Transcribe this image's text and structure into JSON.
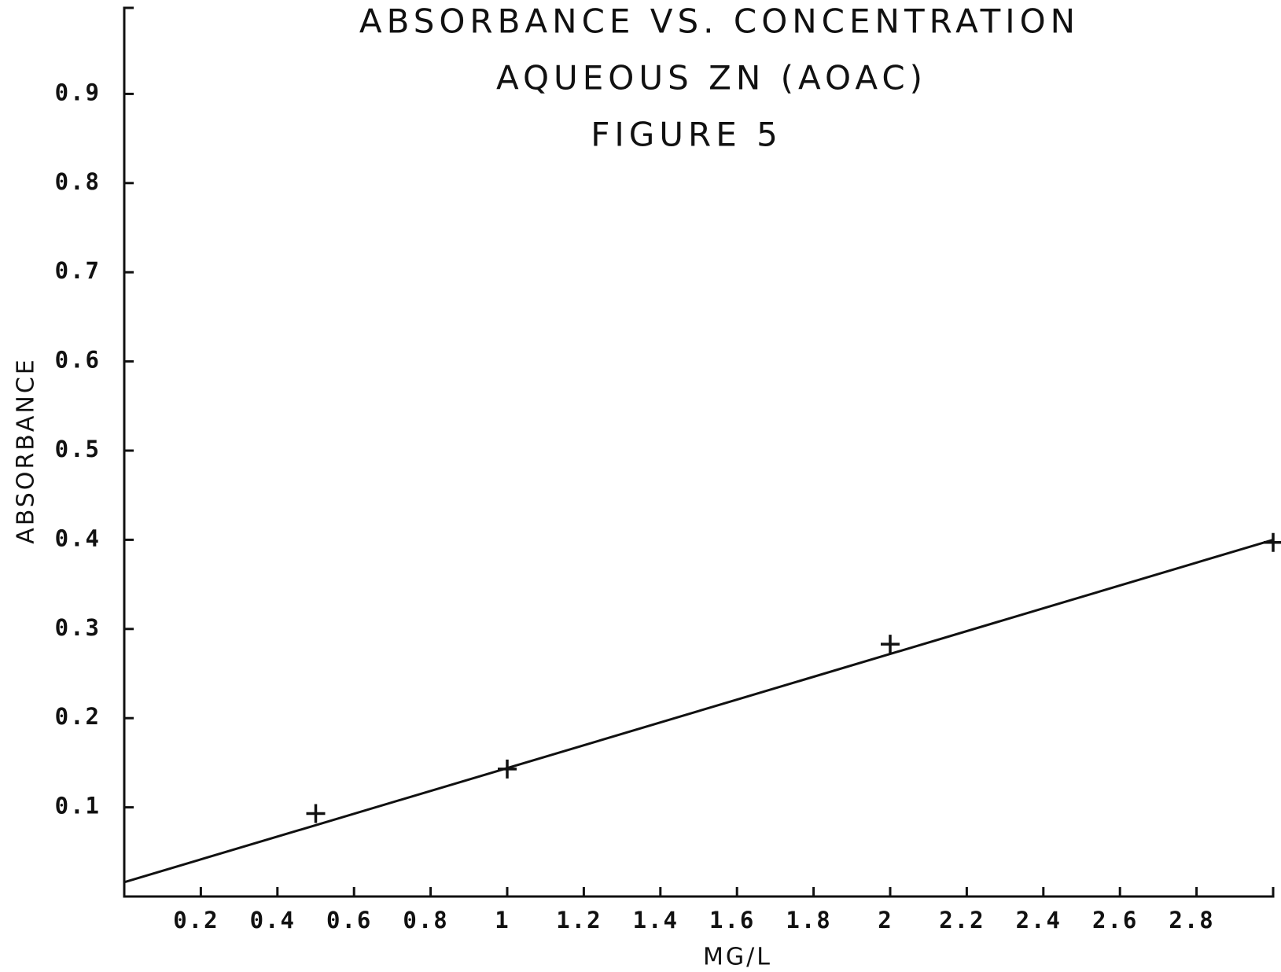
{
  "chart_data": {
    "type": "scatter",
    "title_lines": [
      "ABSORBANCE VS. CONCENTRATION",
      "AQUEOUS ZN (AOAC)",
      "FIGURE 5"
    ],
    "x_label": "MG/L",
    "y_label": "ABSORBANCE",
    "xlim": [
      0,
      3
    ],
    "xticks": [
      0.2,
      0.4,
      0.6,
      0.8,
      1,
      1.2,
      1.4,
      1.6,
      1.8,
      2,
      2.2,
      2.4,
      2.6,
      2.8
    ],
    "ylim": [
      0,
      1
    ],
    "yticks": [
      0.1,
      0.2,
      0.3,
      0.4,
      0.5,
      0.6,
      0.7,
      0.8,
      0.9
    ],
    "series": [
      {
        "marker": "plus",
        "color": "#111111",
        "x": [
          0.5,
          1,
          2,
          3
        ],
        "values": [
          0.093,
          0.143,
          0.283,
          0.397
        ]
      },
      {
        "marker": "line",
        "color": "#111111",
        "x": [
          0,
          3
        ],
        "values": [
          0.016,
          0.4
        ]
      }
    ]
  }
}
